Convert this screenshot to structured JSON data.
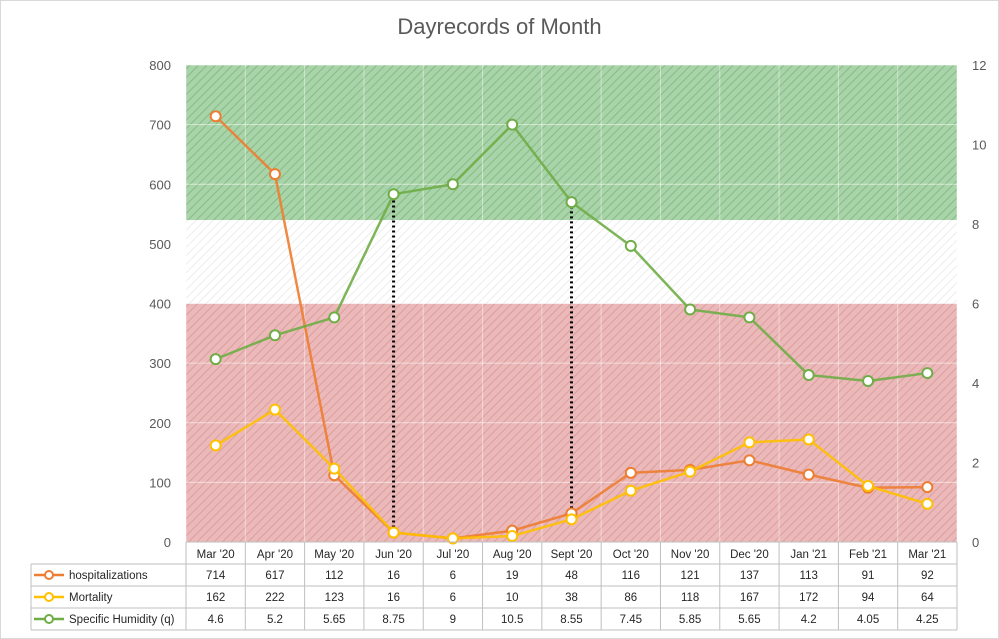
{
  "chart_data": {
    "type": "line",
    "title": "Dayrecords of Month",
    "categories": [
      "Mar '20",
      "Apr '20",
      "May '20",
      "Jun '20",
      "Jul '20",
      "Aug '20",
      "Sept '20",
      "Oct '20",
      "Nov '20",
      "Dec '20",
      "Jan '21",
      "Feb '21",
      "Mar '21"
    ],
    "y_left": {
      "min": 0,
      "max": 800,
      "ticks": [
        "0",
        "100",
        "200",
        "300",
        "400",
        "500",
        "600",
        "700",
        "800"
      ]
    },
    "y_right": {
      "min": 0,
      "max": 12,
      "ticks": [
        "0",
        "2",
        "4",
        "6",
        "8",
        "10",
        "12"
      ]
    },
    "series": [
      {
        "name": "hospitalizations",
        "axis": "left",
        "color": "#ED7D31",
        "values": [
          714,
          617,
          112,
          16,
          6,
          19,
          48,
          116,
          121,
          137,
          113,
          91,
          92
        ],
        "labels": [
          "714",
          "617",
          "112",
          "16",
          "6",
          "19",
          "48",
          "116",
          "121",
          "137",
          "113",
          "91",
          "92"
        ]
      },
      {
        "name": "Mortality",
        "axis": "left",
        "color": "#FFC000",
        "values": [
          162,
          222,
          123,
          16,
          6,
          10,
          38,
          86,
          118,
          167,
          172,
          94,
          64
        ],
        "labels": [
          "162",
          "222",
          "123",
          "16",
          "6",
          "10",
          "38",
          "86",
          "118",
          "167",
          "172",
          "94",
          "64"
        ]
      },
      {
        "name": "Specific Humidity (q)",
        "axis": "right",
        "color": "#70AD47",
        "values": [
          4.6,
          5.2,
          5.65,
          8.75,
          9,
          10.5,
          8.55,
          7.45,
          5.85,
          5.65,
          4.2,
          4.05,
          4.25
        ],
        "labels": [
          "4.6",
          "5.2",
          "5.65",
          "8.75",
          "9",
          "10.5",
          "8.55",
          "7.45",
          "5.85",
          "5.65",
          "4.2",
          "4.05",
          "4.25"
        ]
      }
    ],
    "bands": [
      {
        "from": 540,
        "to": 800,
        "color": "#8FC48F"
      },
      {
        "from": 400,
        "to": 540,
        "color": "#ffffff"
      },
      {
        "from": 0,
        "to": 400,
        "color": "#E5A3A3"
      }
    ],
    "threshold_lines": [
      {
        "value": 535,
        "color": "#1E9A2E"
      },
      {
        "value": 403,
        "color": "#E8403F"
      }
    ],
    "dotted_markers": [
      {
        "category_index": 3,
        "y_from": 16,
        "y_to_right": 8.75
      },
      {
        "category_index": 6,
        "y_from": 48,
        "y_to_right": 8.55
      }
    ],
    "legend": "data-table-below"
  }
}
